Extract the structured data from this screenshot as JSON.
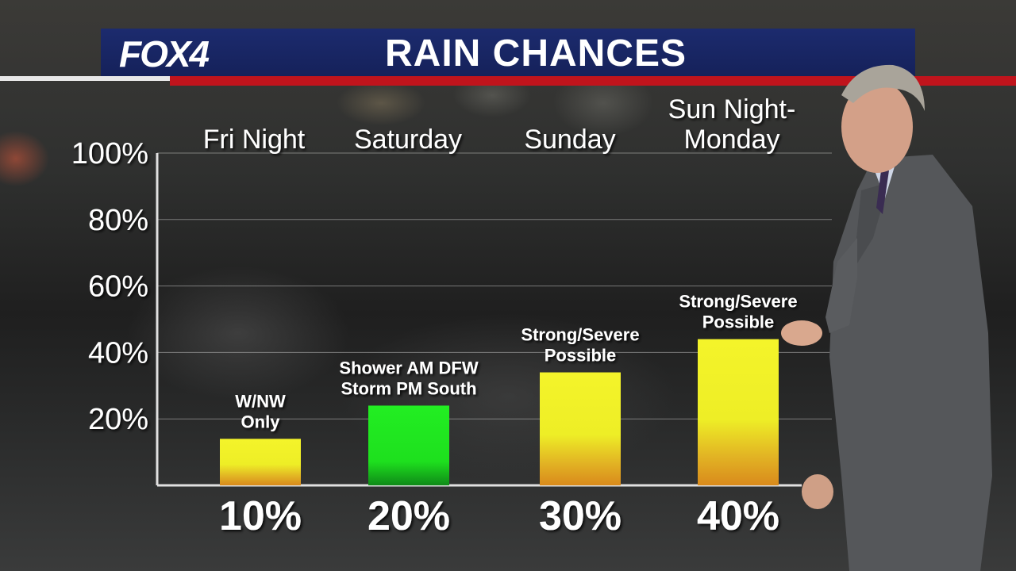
{
  "header": {
    "logo": "FOX4",
    "title": "RAIN CHANCES"
  },
  "colors": {
    "header_blue": "#1c2b6e",
    "stripe_red": "#c0141c",
    "bar_yellow": "#f2f22a",
    "bar_orange": "#e89a1c",
    "bar_green": "#1ee81e"
  },
  "chart_data": {
    "type": "bar",
    "categories": [
      [
        "Fri Night"
      ],
      [
        "Saturday"
      ],
      [
        "Sunday"
      ],
      [
        "Sun Night-",
        "Monday"
      ]
    ],
    "values": [
      10,
      20,
      30,
      40
    ],
    "value_labels": [
      "10%",
      "20%",
      "30%",
      "40%"
    ],
    "annotations": [
      [
        "W/NW",
        "Only"
      ],
      [
        "Shower AM DFW",
        "Storm PM South"
      ],
      [
        "Strong/Severe",
        "Possible"
      ],
      [
        "Strong/Severe",
        "Possible"
      ]
    ],
    "bar_colors": [
      "yellow",
      "green",
      "yellow",
      "yellow"
    ],
    "ylim": [
      0,
      100
    ],
    "yticks": [
      "20%",
      "40%",
      "60%",
      "80%",
      "100%"
    ],
    "ytick_values": [
      20,
      40,
      60,
      80,
      100
    ],
    "grid": true
  }
}
